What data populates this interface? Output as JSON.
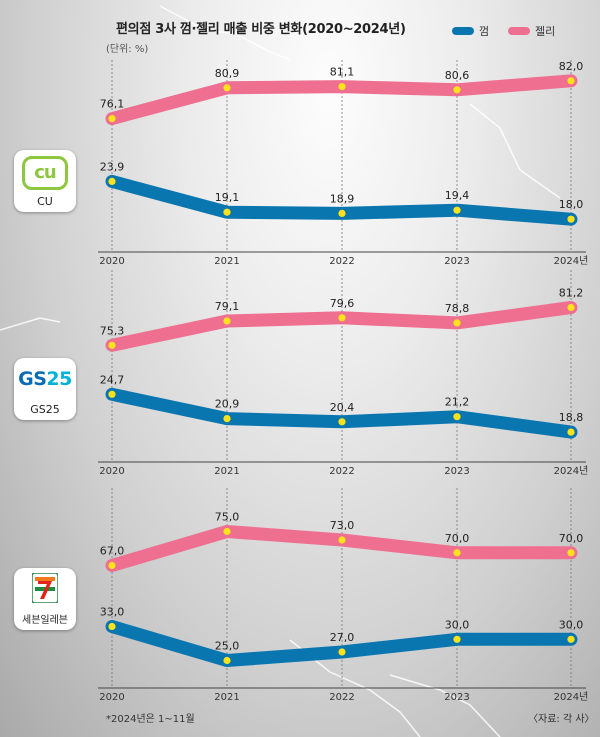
{
  "title": "편의점 3사 껌·젤리 매출 비중 변화(2020~2024년)",
  "unit": "(단위: %)",
  "legend": {
    "gum": "껌",
    "jelly": "젤리"
  },
  "colors": {
    "gum": "#0a76b0",
    "jelly": "#ee6f8f",
    "marker": "#ffe31a"
  },
  "footnote": "*2024년은 1~11월",
  "source": "〈자료: 각 사〉",
  "chart_data": [
    {
      "type": "line",
      "store": "CU",
      "x": [
        "2020",
        "2021",
        "2022",
        "2023",
        "2024년"
      ],
      "series": [
        {
          "name": "젤리",
          "values": [
            76.1,
            80.9,
            81.1,
            80.6,
            82.0
          ],
          "labels": [
            "76,1",
            "80,9",
            "81,1",
            "80,6",
            "82,0"
          ]
        },
        {
          "name": "껌",
          "values": [
            23.9,
            19.1,
            18.9,
            19.4,
            18.0
          ],
          "labels": [
            "23,9",
            "19,1",
            "18,9",
            "19,4",
            "18,0"
          ]
        }
      ]
    },
    {
      "type": "line",
      "store": "GS25",
      "x": [
        "2020",
        "2021",
        "2022",
        "2023",
        "2024년"
      ],
      "series": [
        {
          "name": "젤리",
          "values": [
            75.3,
            79.1,
            79.6,
            78.8,
            81.2
          ],
          "labels": [
            "75,3",
            "79,1",
            "79,6",
            "78,8",
            "81,2"
          ]
        },
        {
          "name": "껌",
          "values": [
            24.7,
            20.9,
            20.4,
            21.2,
            18.8
          ],
          "labels": [
            "24,7",
            "20,9",
            "20,4",
            "21,2",
            "18,8"
          ]
        }
      ]
    },
    {
      "type": "line",
      "store": "세븐일레븐",
      "x": [
        "2020",
        "2021",
        "2022",
        "2023",
        "2024년"
      ],
      "series": [
        {
          "name": "젤리",
          "values": [
            67.0,
            75.0,
            73.0,
            70.0,
            70.0
          ],
          "labels": [
            "67,0",
            "75,0",
            "73,0",
            "70,0",
            "70,0"
          ]
        },
        {
          "name": "껌",
          "values": [
            33.0,
            25.0,
            27.0,
            30.0,
            30.0
          ],
          "labels": [
            "33,0",
            "25,0",
            "27,0",
            "30,0",
            "30,0"
          ]
        }
      ]
    }
  ]
}
